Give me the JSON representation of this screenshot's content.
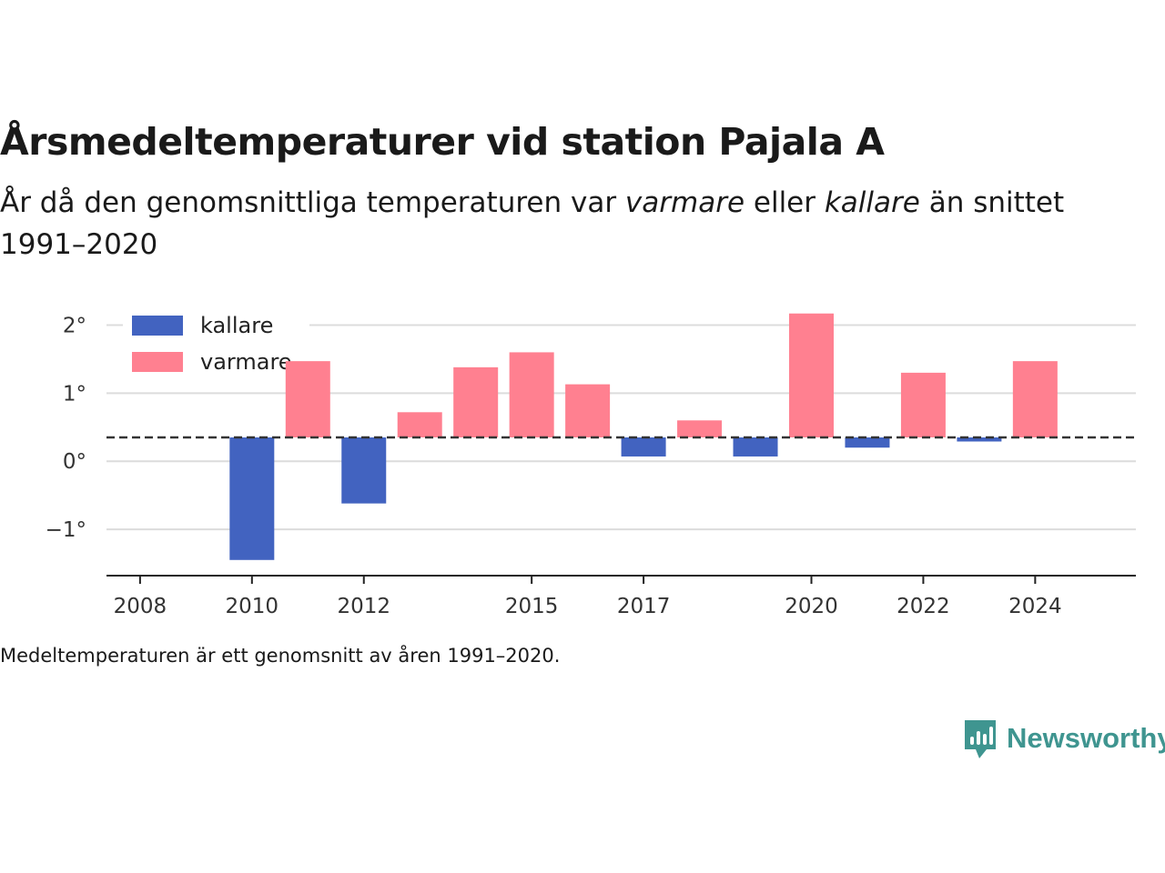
{
  "header": {
    "title": "Årsmedeltemperaturer vid station Pajala A",
    "subtitle_pre": "År då den genomsnittliga temperaturen var ",
    "subtitle_warm": "varmare",
    "subtitle_mid": " eller ",
    "subtitle_cold": "kallare",
    "subtitle_post": " än snittet 1991–2020"
  },
  "footnote": "Medeltemperaturen är ett genomsnitt av åren 1991–2020.",
  "brand": {
    "name": "Newsworthy",
    "color": "#3f9590"
  },
  "chart_data": {
    "type": "bar",
    "baseline": 0.35,
    "x": [
      2010,
      2011,
      2012,
      2013,
      2014,
      2015,
      2016,
      2017,
      2018,
      2019,
      2020,
      2021,
      2022,
      2023,
      2024
    ],
    "values": [
      -1.45,
      1.47,
      -0.62,
      0.72,
      1.38,
      1.6,
      1.13,
      0.07,
      0.6,
      0.07,
      2.17,
      0.2,
      1.3,
      0.29,
      1.47
    ],
    "xlim": [
      2007.4,
      2025.8
    ],
    "xticks": [
      2008,
      2010,
      2012,
      2015,
      2017,
      2020,
      2022,
      2024
    ],
    "xtick_labels": [
      "2008",
      "2010",
      "2012",
      "2015",
      "2017",
      "2020",
      "2022",
      "2024"
    ],
    "ylim": [
      -1.68,
      2.3
    ],
    "yticks": [
      -1,
      0,
      1,
      2
    ],
    "ytick_labels": [
      "−1°",
      "0°",
      "1°",
      "2°"
    ],
    "grid": true,
    "legend": {
      "position": "top-left",
      "entries": [
        {
          "label": "kallare",
          "color": "#4263c0"
        },
        {
          "label": "varmare",
          "color": "#ff8090"
        }
      ]
    }
  }
}
